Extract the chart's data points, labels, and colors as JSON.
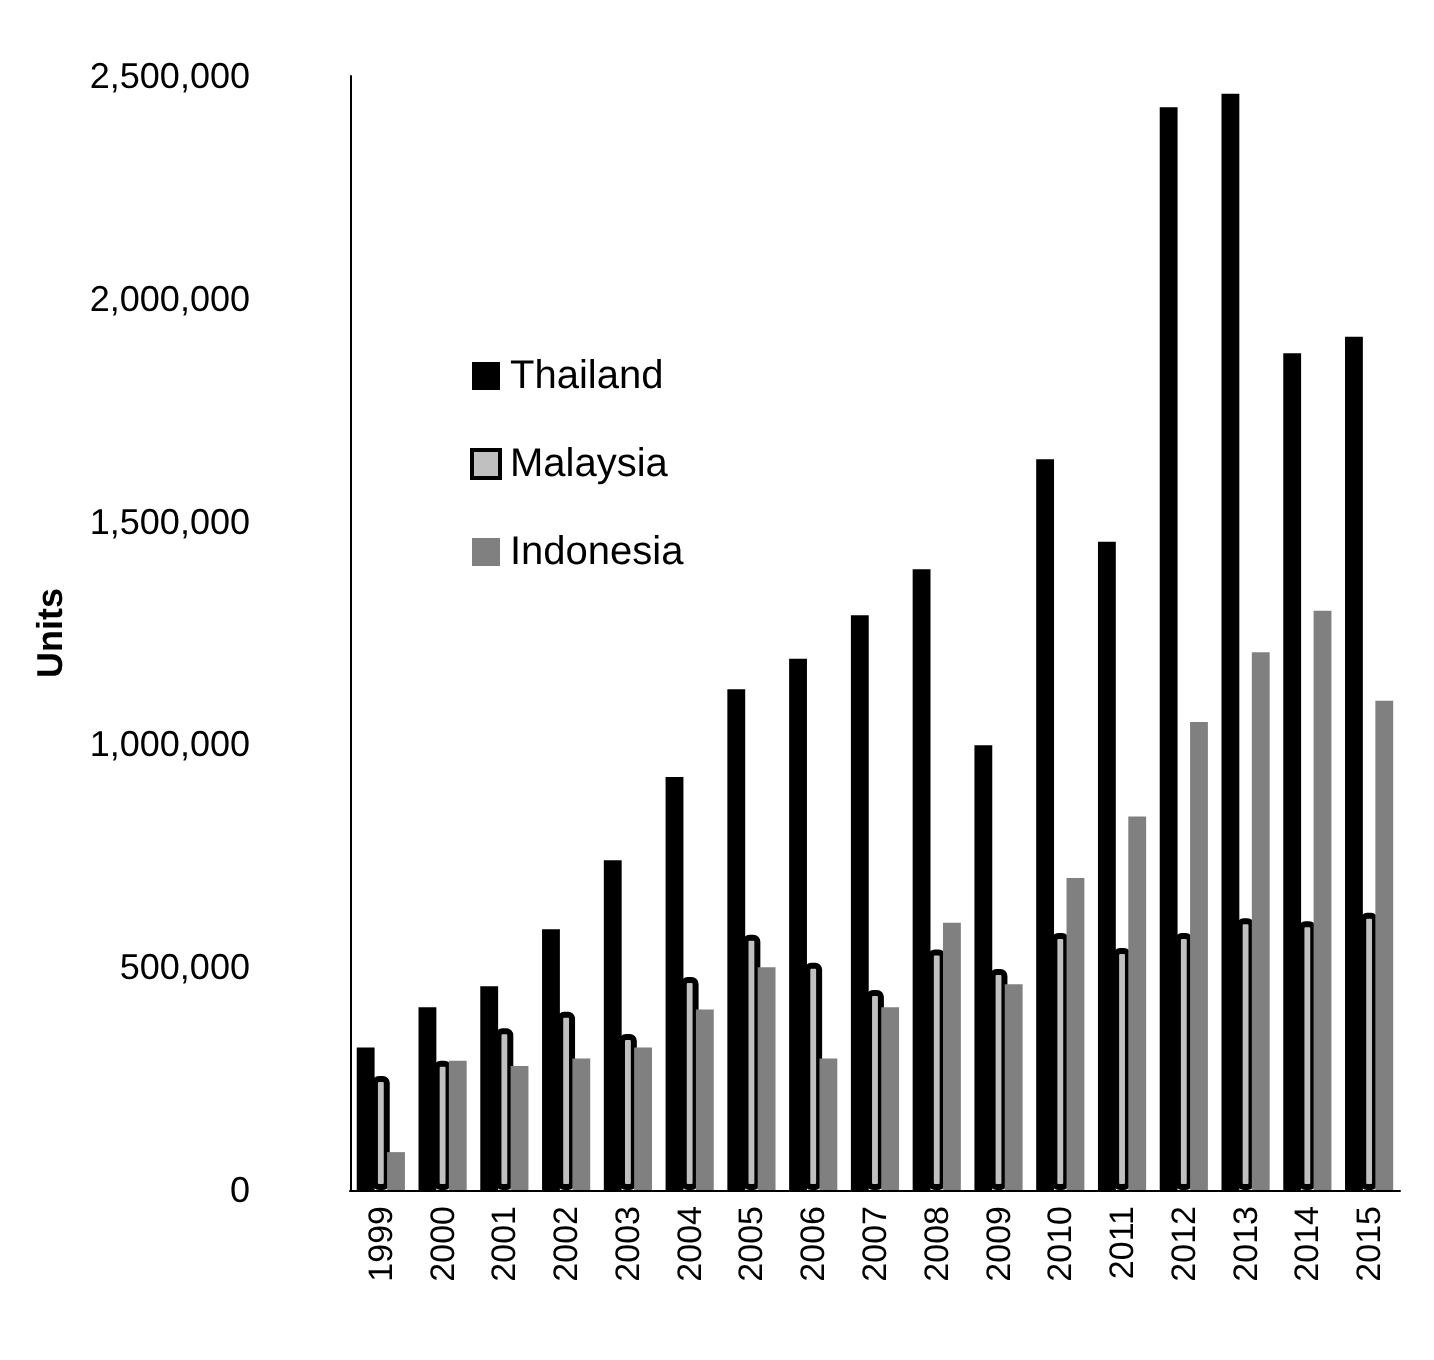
{
  "chart_data": {
    "type": "bar",
    "ylabel": "Units",
    "categories": [
      "1999",
      "2000",
      "2001",
      "2002",
      "2003",
      "2004",
      "2005",
      "2006",
      "2007",
      "2008",
      "2009",
      "2010",
      "2011",
      "2012",
      "2013",
      "2014",
      "2015"
    ],
    "series": [
      {
        "name": "Thailand",
        "color": "#000000",
        "values": [
          320000,
          410000,
          457000,
          585000,
          740000,
          927000,
          1124000,
          1192000,
          1290000,
          1393000,
          998000,
          1640000,
          1455000,
          2430000,
          2460000,
          1878000,
          1915000
        ]
      },
      {
        "name": "Malaysia",
        "color": "#c0c0c0",
        "values": [
          256000,
          290000,
          363000,
          400000,
          350000,
          478000,
          573000,
          510000,
          449000,
          540000,
          496000,
          577000,
          543000,
          577000,
          610000,
          603000,
          622000
        ]
      },
      {
        "name": "Indonesia",
        "color": "#808080",
        "values": [
          85000,
          290000,
          278000,
          295000,
          320000,
          405000,
          500000,
          295000,
          410000,
          600000,
          462000,
          700000,
          838000,
          1050000,
          1207000,
          1300000,
          1098000
        ]
      }
    ],
    "ylim": [
      0,
      2500000
    ],
    "yticks": [
      0,
      {
        "value": 500000,
        "label": "500,000"
      },
      {
        "value": 1000000,
        "label": "1,000,000"
      },
      {
        "value": 1500000,
        "label": "1,500,000"
      },
      {
        "value": 2000000,
        "label": "2,000,000"
      },
      {
        "value": 2500000,
        "label": "2,500,000"
      }
    ],
    "grid": false,
    "legend": "top left"
  }
}
